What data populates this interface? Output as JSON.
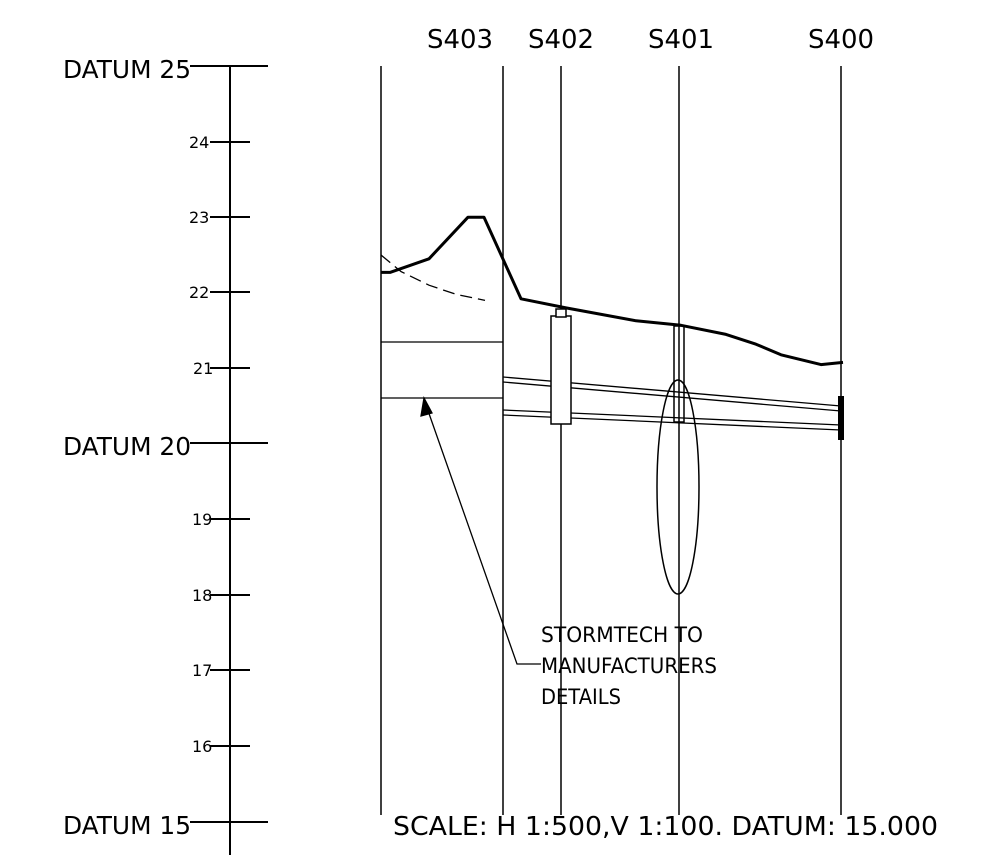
{
  "stations": [
    {
      "name": "S403"
    },
    {
      "name": "S402"
    },
    {
      "name": "S401"
    },
    {
      "name": "S400"
    }
  ],
  "datum_labels": [
    "DATUM  25",
    "DATUM  20",
    "DATUM  15"
  ],
  "tick_labels": [
    "24",
    "23",
    "22",
    "21",
    "19",
    "18",
    "17",
    "16"
  ],
  "note": {
    "lines": [
      "STORMTECH TO",
      "MANUFACTURERS",
      "DETAILS"
    ]
  },
  "scale_text": "SCALE:  H  1:500,V  1:100.  DATUM:  15.000",
  "vertical_axis": {
    "min": 15,
    "max": 25,
    "major_step": 5,
    "minor_step": 1
  },
  "ground_level": {
    "existing": [
      {
        "chainage": 0,
        "level": 22.5
      },
      {
        "chainage": 20,
        "level": 22.28
      },
      {
        "chainage": 48,
        "level": 22.1
      },
      {
        "chainage": 75,
        "level": 21.98
      },
      {
        "chainage": 104,
        "level": 21.9
      }
    ],
    "proposed": [
      {
        "chainage": 0,
        "level": 22.27
      },
      {
        "chainage": 9,
        "level": 22.27
      },
      {
        "chainage": 48,
        "level": 22.45
      },
      {
        "chainage": 87,
        "level": 23.0
      },
      {
        "chainage": 103,
        "level": 23.0
      },
      {
        "chainage": 140,
        "level": 21.92
      },
      {
        "chainage": 185,
        "level": 21.8
      },
      {
        "chainage": 255,
        "level": 21.63
      },
      {
        "chainage": 300,
        "level": 21.57
      },
      {
        "chainage": 345,
        "level": 21.45
      },
      {
        "chainage": 375,
        "level": 21.32
      },
      {
        "chainage": 400,
        "level": 21.18
      },
      {
        "chainage": 440,
        "level": 21.05
      },
      {
        "chainage": 462,
        "level": 21.08
      }
    ]
  },
  "colors": {
    "line": "#000000",
    "background": "#ffffff"
  }
}
